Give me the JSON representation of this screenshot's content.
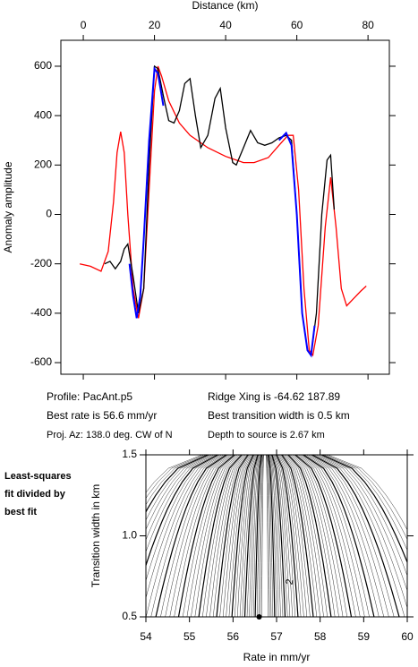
{
  "chart_data": [
    {
      "type": "line",
      "x_label": "Distance (km)",
      "y_label": "Anomaly amplitude",
      "xlim": [
        -6.3,
        86
      ],
      "ylim": [
        -647,
        705
      ],
      "xticks": [
        0,
        20,
        40,
        60,
        80
      ],
      "yticks": [
        -600,
        -400,
        -200,
        0,
        200,
        400,
        600
      ],
      "series": [
        {
          "color": "#ff0000",
          "x": [
            -1,
            2,
            5,
            7,
            8.5,
            9.5,
            10.5,
            11.5,
            12.5,
            14,
            15.5,
            17,
            18.5,
            20,
            21,
            22,
            24,
            27,
            30,
            35,
            40,
            45,
            48,
            52,
            55,
            57.5,
            59,
            60.5,
            62,
            63.5,
            64.5,
            66,
            68,
            69.5,
            71,
            72.5,
            74,
            76,
            78,
            79.5
          ],
          "values": [
            -200,
            -210,
            -230,
            -150,
            50,
            250,
            335,
            250,
            0,
            -300,
            -420,
            -300,
            100,
            500,
            600,
            560,
            460,
            370,
            320,
            270,
            235,
            210,
            210,
            230,
            280,
            320,
            320,
            100,
            -300,
            -550,
            -570,
            -450,
            -50,
            150,
            -50,
            -300,
            -370,
            -340,
            -310,
            -290
          ]
        },
        {
          "color": "#000000",
          "x": [
            6,
            7.5,
            9,
            10.5,
            11.5,
            12.5,
            14,
            15.5,
            17,
            18.5,
            20,
            21,
            22.5,
            24,
            25.5,
            27,
            28.5,
            30,
            31.5,
            33,
            35,
            37,
            38.5,
            40,
            42,
            43,
            45,
            47,
            49,
            51,
            53,
            55,
            57,
            58.5,
            60,
            61.5,
            63,
            64,
            65.5,
            67,
            68.5,
            69.5,
            70.5
          ],
          "values": [
            -200,
            -190,
            -220,
            -190,
            -140,
            -120,
            -250,
            -400,
            -300,
            200,
            600,
            590,
            480,
            380,
            370,
            420,
            530,
            550,
            400,
            270,
            320,
            470,
            510,
            350,
            210,
            200,
            270,
            340,
            290,
            280,
            290,
            310,
            320,
            300,
            0,
            -400,
            -550,
            -570,
            -400,
            0,
            220,
            240,
            20
          ]
        },
        {
          "color": "#0000ff",
          "x": [
            13,
            14,
            15,
            16,
            17,
            18.5,
            20,
            21,
            22.5,
            null,
            55,
            57,
            58.5,
            60,
            61.5,
            63,
            64,
            65
          ],
          "values": [
            -200,
            -330,
            -420,
            -330,
            -100,
            300,
            590,
            570,
            440,
            null,
            300,
            330,
            280,
            0,
            -400,
            -550,
            -570,
            -450
          ]
        }
      ]
    },
    {
      "type": "contour",
      "x_label": "Rate in mm/yr",
      "y_label": "Transition width in km",
      "xlim": [
        54,
        60
      ],
      "ylim": [
        0.5,
        1.5
      ],
      "xticks": [
        54,
        55,
        56,
        57,
        58,
        59,
        60
      ],
      "yticks": [
        0.5,
        {
          "value": 1,
          "label": "1.0"
        },
        1.5
      ],
      "marker": {
        "x": 56.6,
        "y": 0.5
      },
      "contour_label": "2",
      "note_lines": [
        "Least-squares",
        "fit divided by",
        "best fit"
      ]
    }
  ],
  "profile_info": [
    "Profile: PacAnt.p5",
    "Ridge Xing is -64.62 187.89",
    "Best rate is 56.6 mm/yr",
    "Best transition width is 0.5 km",
    "Proj. Az: 138.0 deg. CW of N",
    "Depth to source is   2.67 km"
  ]
}
